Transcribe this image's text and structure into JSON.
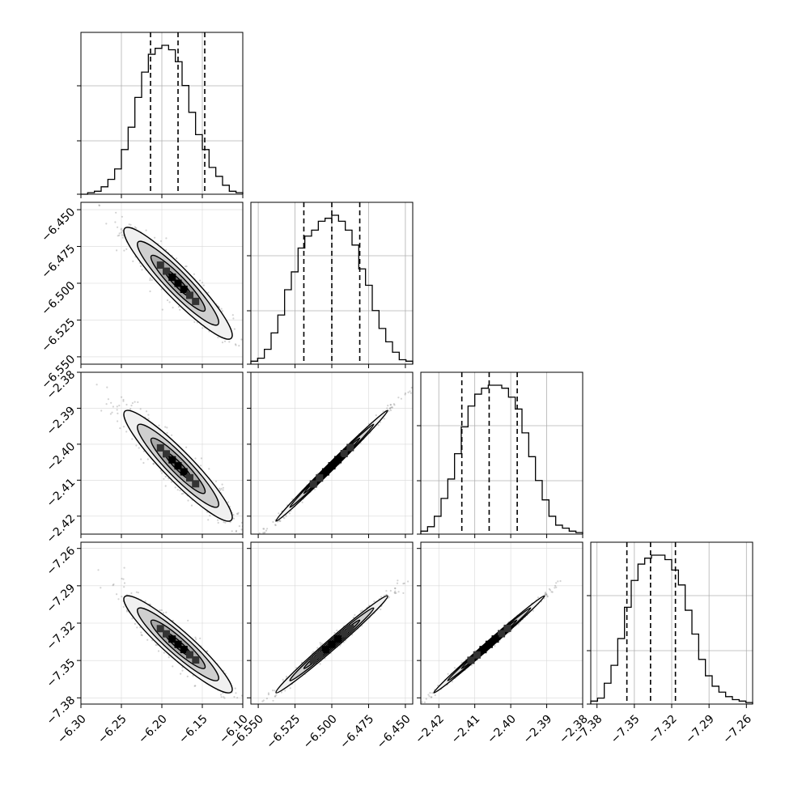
{
  "chart_data": {
    "type": "corner",
    "grid": true,
    "colors": {
      "line": "#000000",
      "grid": "#b0b0b0",
      "scatter": "#7f7f7f",
      "frame": "#000000"
    },
    "parameters": [
      {
        "range": [
          -6.3,
          -6.1
        ],
        "ticks": [
          -6.3,
          -6.25,
          -6.2,
          -6.15,
          -6.1
        ],
        "tick_labels": [
          "−6.30",
          "−6.25",
          "−6.20",
          "−6.15",
          "−6.10"
        ],
        "quantiles": [
          -6.214,
          -6.18,
          -6.147
        ]
      },
      {
        "range": [
          -6.555,
          -6.445
        ],
        "ticks": [
          -6.55,
          -6.525,
          -6.5,
          -6.475,
          -6.45
        ],
        "tick_labels": [
          "−6.550",
          "−6.525",
          "−6.500",
          "−6.475",
          "−6.450"
        ],
        "quantiles": [
          -6.519,
          -6.5,
          -6.481
        ]
      },
      {
        "range": [
          -2.425,
          -2.38
        ],
        "ticks": [
          -2.42,
          -2.41,
          -2.4,
          -2.39,
          -2.38
        ],
        "tick_labels": [
          "−2.42",
          "−2.41",
          "−2.40",
          "−2.39",
          "−2.38"
        ],
        "quantiles": [
          -2.4136,
          -2.406,
          -2.3982
        ]
      },
      {
        "range": [
          -7.385,
          -7.255
        ],
        "ticks": [
          -7.38,
          -7.35,
          -7.32,
          -7.29,
          -7.26
        ],
        "tick_labels": [
          "−7.38",
          "−7.35",
          "−7.32",
          "−7.29",
          "−7.26"
        ],
        "quantiles": [
          -7.356,
          -7.337,
          -7.317
        ]
      }
    ],
    "histograms": [
      [
        0.0,
        0.01,
        0.02,
        0.05,
        0.1,
        0.17,
        0.3,
        0.45,
        0.65,
        0.82,
        0.94,
        0.98,
        1.0,
        0.97,
        0.89,
        0.73,
        0.55,
        0.4,
        0.3,
        0.18,
        0.12,
        0.06,
        0.02,
        0.01
      ],
      [
        0.02,
        0.04,
        0.1,
        0.21,
        0.33,
        0.5,
        0.62,
        0.78,
        0.86,
        0.9,
        0.96,
        0.98,
        1.0,
        0.96,
        0.9,
        0.8,
        0.64,
        0.53,
        0.36,
        0.24,
        0.15,
        0.08,
        0.03,
        0.02
      ],
      [
        0.02,
        0.05,
        0.12,
        0.24,
        0.37,
        0.54,
        0.72,
        0.86,
        0.94,
        0.98,
        1.0,
        1.0,
        0.98,
        0.92,
        0.84,
        0.68,
        0.52,
        0.36,
        0.23,
        0.12,
        0.06,
        0.04,
        0.02,
        0.01
      ],
      [
        0.02,
        0.04,
        0.14,
        0.26,
        0.44,
        0.65,
        0.83,
        0.94,
        0.98,
        1.0,
        1.0,
        0.97,
        0.9,
        0.8,
        0.63,
        0.47,
        0.3,
        0.19,
        0.12,
        0.08,
        0.05,
        0.03,
        0.02,
        0.01
      ]
    ],
    "correlations": [
      {
        "row": 1,
        "col": 0,
        "rho": -0.93
      },
      {
        "row": 2,
        "col": 0,
        "rho": -0.93
      },
      {
        "row": 2,
        "col": 1,
        "rho": 0.996
      },
      {
        "row": 3,
        "col": 0,
        "rho": -0.93
      },
      {
        "row": 3,
        "col": 1,
        "rho": 0.99
      },
      {
        "row": 3,
        "col": 2,
        "rho": 0.996
      }
    ],
    "contour_levels_sigma": [
      0.5,
      1.0,
      1.5,
      2.0
    ]
  }
}
